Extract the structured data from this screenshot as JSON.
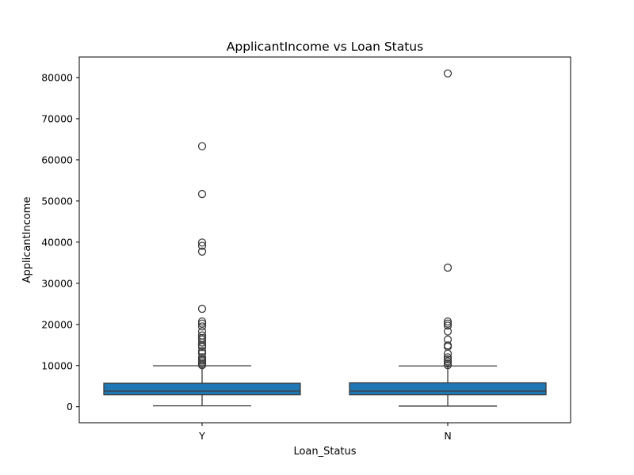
{
  "chart_data": {
    "type": "boxplot",
    "title": "ApplicantIncome vs Loan Status",
    "xlabel": "Loan_Status",
    "ylabel": "ApplicantIncome",
    "categories": [
      "Y",
      "N"
    ],
    "ylim": [
      -3900,
      85000
    ],
    "yticks": [
      0,
      10000,
      20000,
      30000,
      40000,
      50000,
      60000,
      70000,
      80000
    ],
    "ytick_labels": [
      "0",
      "10000",
      "20000",
      "30000",
      "40000",
      "50000",
      "60000",
      "70000",
      "80000"
    ],
    "grid": false,
    "box_color": "#1f77b4",
    "line_color": "#3d3d3d",
    "boxes": [
      {
        "category": "Y",
        "whisker_low": 210,
        "q1": 2900,
        "median": 3800,
        "q3": 5700,
        "whisker_high": 9950,
        "outliers": [
          10100,
          10400,
          10800,
          11200,
          11500,
          12000,
          13000,
          13500,
          14500,
          14900,
          15600,
          16300,
          16700,
          17300,
          18300,
          19500,
          20200,
          20700,
          23800,
          37700,
          39100,
          39900,
          51700,
          63300
        ]
      },
      {
        "category": "N",
        "whisker_low": 150,
        "q1": 2900,
        "median": 3800,
        "q3": 5800,
        "whisker_high": 9900,
        "outliers": [
          10100,
          10500,
          11000,
          11500,
          12000,
          12900,
          14600,
          14900,
          16300,
          18300,
          19700,
          20200,
          20700,
          33800,
          81000
        ]
      }
    ]
  }
}
